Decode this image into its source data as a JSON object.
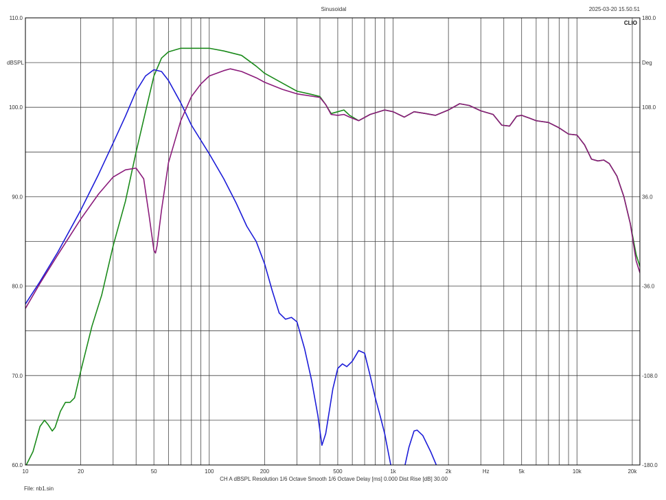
{
  "header": {
    "title": "Sinusoidal",
    "timestamp": "2025-03-20 15.50.51",
    "logo": "CLIO"
  },
  "footer": {
    "info": "CH A   dBSPL   Resolution 1/6 Octave   Smooth 1/6 Octave   Delay [ms] 0.000   Dist Rise [dB] 30.00",
    "file": "File: nb1.sin"
  },
  "chart_data": {
    "type": "line",
    "title": "Sinusoidal",
    "xlabel": "Hz",
    "ylabel": "dBSPL",
    "y2label": "Deg",
    "xscale": "log",
    "xlim": [
      10,
      22000
    ],
    "ylim": [
      60,
      110
    ],
    "y2lim": [
      -180,
      180
    ],
    "grid": true,
    "x_major_ticks": [
      10,
      20,
      50,
      100,
      200,
      500,
      1000,
      2000,
      5000,
      10000,
      20000
    ],
    "x_tick_labels": [
      "10",
      "20",
      "50",
      "100",
      "200",
      "500",
      "1k",
      "2k",
      "Hz",
      "5k",
      "10k",
      "20k"
    ],
    "y_tick_labels": [
      "110.0",
      "100.0",
      "90.0",
      "80.0",
      "70.0",
      "60.0"
    ],
    "y_tick_values": [
      110,
      100,
      90,
      80,
      70,
      60
    ],
    "y2_tick_labels": [
      "180.0",
      "108.0",
      "36.0",
      "-36.0",
      "-108.0",
      "-180.0"
    ],
    "y2_tick_values": [
      180,
      108,
      36,
      -36,
      -108,
      -180
    ],
    "series": [
      {
        "color": "#1a8a1a",
        "points": [
          [
            10,
            59.8
          ],
          [
            11,
            61.5
          ],
          [
            12,
            64.3
          ],
          [
            12.7,
            65.0
          ],
          [
            13.3,
            64.5
          ],
          [
            14,
            63.8
          ],
          [
            14.5,
            64.2
          ],
          [
            15.5,
            66.0
          ],
          [
            16.5,
            67.0
          ],
          [
            17.5,
            67.0
          ],
          [
            18.5,
            67.5
          ],
          [
            20,
            70.5
          ],
          [
            23,
            75.5
          ],
          [
            26,
            79.0
          ],
          [
            30,
            84.5
          ],
          [
            35,
            89.5
          ],
          [
            40,
            95.0
          ],
          [
            45,
            99.5
          ],
          [
            50,
            103.5
          ],
          [
            55,
            105.5
          ],
          [
            60,
            106.2
          ],
          [
            70,
            106.6
          ],
          [
            80,
            106.6
          ],
          [
            100,
            106.6
          ],
          [
            120,
            106.3
          ],
          [
            150,
            105.8
          ],
          [
            180,
            104.6
          ],
          [
            200,
            103.8
          ],
          [
            250,
            102.7
          ],
          [
            300,
            101.8
          ],
          [
            350,
            101.5
          ],
          [
            400,
            101.2
          ],
          [
            430,
            100.3
          ],
          [
            460,
            99.3
          ],
          [
            500,
            99.5
          ],
          [
            540,
            99.7
          ],
          [
            580,
            99.1
          ],
          [
            650,
            98.5
          ],
          [
            750,
            99.2
          ],
          [
            900,
            99.7
          ],
          [
            1000,
            99.5
          ],
          [
            1150,
            98.9
          ],
          [
            1300,
            99.5
          ],
          [
            1500,
            99.3
          ],
          [
            1700,
            99.1
          ],
          [
            2000,
            99.7
          ],
          [
            2300,
            100.4
          ],
          [
            2600,
            100.2
          ],
          [
            3000,
            99.6
          ],
          [
            3500,
            99.2
          ],
          [
            3900,
            98.0
          ],
          [
            4300,
            97.9
          ],
          [
            4700,
            99.0
          ],
          [
            5000,
            99.1
          ],
          [
            5500,
            98.8
          ],
          [
            6000,
            98.5
          ],
          [
            7000,
            98.3
          ],
          [
            8000,
            97.7
          ],
          [
            9000,
            97.0
          ],
          [
            10000,
            96.9
          ],
          [
            11000,
            95.8
          ],
          [
            12000,
            94.2
          ],
          [
            13000,
            94.0
          ],
          [
            14000,
            94.1
          ],
          [
            15000,
            93.7
          ],
          [
            16500,
            92.3
          ],
          [
            18000,
            90.0
          ],
          [
            19500,
            87.0
          ],
          [
            21000,
            83.5
          ],
          [
            22000,
            82.2
          ]
        ]
      },
      {
        "color": "#1c1cd8",
        "points": [
          [
            10,
            78.0
          ],
          [
            12,
            80.5
          ],
          [
            15,
            83.8
          ],
          [
            20,
            88.5
          ],
          [
            25,
            92.5
          ],
          [
            30,
            96.0
          ],
          [
            35,
            99.0
          ],
          [
            40,
            101.8
          ],
          [
            45,
            103.5
          ],
          [
            50,
            104.2
          ],
          [
            55,
            104.0
          ],
          [
            60,
            103.0
          ],
          [
            70,
            100.5
          ],
          [
            80,
            98.0
          ],
          [
            100,
            94.8
          ],
          [
            120,
            92.0
          ],
          [
            140,
            89.3
          ],
          [
            160,
            86.7
          ],
          [
            180,
            85.0
          ],
          [
            200,
            82.5
          ],
          [
            220,
            79.5
          ],
          [
            240,
            77.0
          ],
          [
            260,
            76.3
          ],
          [
            280,
            76.5
          ],
          [
            300,
            76.0
          ],
          [
            330,
            73.0
          ],
          [
            360,
            69.5
          ],
          [
            390,
            65.5
          ],
          [
            410,
            62.2
          ],
          [
            430,
            63.5
          ],
          [
            470,
            68.5
          ],
          [
            500,
            70.8
          ],
          [
            530,
            71.3
          ],
          [
            560,
            71.0
          ],
          [
            600,
            71.6
          ],
          [
            650,
            72.8
          ],
          [
            700,
            72.5
          ],
          [
            750,
            70.0
          ],
          [
            800,
            67.5
          ],
          [
            850,
            65.5
          ],
          [
            900,
            63.5
          ],
          [
            950,
            61.0
          ],
          [
            980,
            59.6
          ]
        ]
      },
      {
        "color": "#1c1cd8",
        "points": [
          [
            1150,
            59.6
          ],
          [
            1220,
            62.0
          ],
          [
            1300,
            63.8
          ],
          [
            1350,
            63.9
          ],
          [
            1450,
            63.3
          ],
          [
            1600,
            61.5
          ],
          [
            1750,
            59.6
          ]
        ]
      },
      {
        "color": "#8a1a7a",
        "points": [
          [
            10,
            77.5
          ],
          [
            12,
            80.3
          ],
          [
            15,
            83.5
          ],
          [
            20,
            87.5
          ],
          [
            25,
            90.3
          ],
          [
            30,
            92.2
          ],
          [
            35,
            93.0
          ],
          [
            40,
            93.2
          ],
          [
            44,
            92.0
          ],
          [
            47,
            88.0
          ],
          [
            50,
            84.0
          ],
          [
            51,
            83.7
          ],
          [
            52,
            84.5
          ],
          [
            55,
            88.5
          ],
          [
            60,
            93.8
          ],
          [
            70,
            98.5
          ],
          [
            80,
            101.2
          ],
          [
            90,
            102.6
          ],
          [
            100,
            103.5
          ],
          [
            120,
            104.1
          ],
          [
            130,
            104.3
          ],
          [
            150,
            104.0
          ],
          [
            180,
            103.3
          ],
          [
            200,
            102.8
          ],
          [
            250,
            102.0
          ],
          [
            300,
            101.5
          ],
          [
            400,
            101.1
          ],
          [
            430,
            100.3
          ],
          [
            460,
            99.2
          ],
          [
            500,
            99.1
          ],
          [
            540,
            99.2
          ],
          [
            580,
            98.9
          ],
          [
            650,
            98.5
          ],
          [
            750,
            99.2
          ],
          [
            900,
            99.7
          ],
          [
            1000,
            99.5
          ],
          [
            1150,
            98.9
          ],
          [
            1300,
            99.5
          ],
          [
            1500,
            99.3
          ],
          [
            1700,
            99.1
          ],
          [
            2000,
            99.7
          ],
          [
            2300,
            100.4
          ],
          [
            2600,
            100.2
          ],
          [
            3000,
            99.6
          ],
          [
            3500,
            99.2
          ],
          [
            3900,
            98.0
          ],
          [
            4300,
            97.9
          ],
          [
            4700,
            99.0
          ],
          [
            5000,
            99.1
          ],
          [
            5500,
            98.8
          ],
          [
            6000,
            98.5
          ],
          [
            7000,
            98.3
          ],
          [
            8000,
            97.7
          ],
          [
            9000,
            97.0
          ],
          [
            10000,
            96.9
          ],
          [
            11000,
            95.8
          ],
          [
            12000,
            94.2
          ],
          [
            13000,
            94.0
          ],
          [
            14000,
            94.1
          ],
          [
            15000,
            93.7
          ],
          [
            16500,
            92.3
          ],
          [
            18000,
            90.0
          ],
          [
            19500,
            87.0
          ],
          [
            21000,
            82.8
          ],
          [
            22000,
            81.5
          ]
        ]
      }
    ]
  }
}
